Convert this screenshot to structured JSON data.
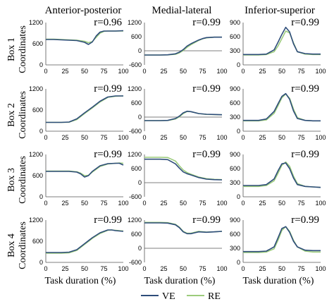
{
  "figure": {
    "columns": [
      "Anterior-posterior",
      "Medial-lateral",
      "Inferior-superior"
    ],
    "rows": [
      {
        "box": "Box 1",
        "coord": "Coordinates"
      },
      {
        "box": "Box 2",
        "coord": "Coordinates"
      },
      {
        "box": "Box 3",
        "coord": "Coordinates"
      },
      {
        "box": "Box 4",
        "coord": "Coordinates"
      }
    ],
    "xlabel": "Task duration (%)",
    "legend": [
      {
        "name": "VE",
        "color": "#2e4d7a"
      },
      {
        "name": "RE",
        "color": "#9ccb7c"
      }
    ]
  },
  "chart_data": [
    {
      "type": "line",
      "row": 0,
      "col": 0,
      "r_label": "r=0.96",
      "x_ticks": [
        0,
        25,
        50,
        75,
        100
      ],
      "y_ticks": [
        0,
        600,
        1200
      ],
      "ylim": [
        0,
        1200
      ],
      "xlim": [
        0,
        100
      ],
      "x": [
        0,
        10,
        20,
        30,
        40,
        50,
        55,
        60,
        65,
        70,
        75,
        80,
        90,
        100
      ],
      "series": [
        {
          "name": "VE",
          "values": [
            720,
            720,
            710,
            700,
            690,
            640,
            580,
            650,
            820,
            930,
            960,
            960,
            960,
            970
          ]
        },
        {
          "name": "RE",
          "values": [
            730,
            730,
            720,
            710,
            700,
            670,
            630,
            660,
            780,
            900,
            950,
            960,
            960,
            960
          ]
        }
      ]
    },
    {
      "type": "line",
      "row": 0,
      "col": 1,
      "r_label": "r=0.99",
      "x_ticks": [
        0,
        25,
        50,
        75,
        100
      ],
      "y_ticks": [
        -600,
        0,
        600,
        1200
      ],
      "ylim": [
        -600,
        1200
      ],
      "xlim": [
        0,
        100
      ],
      "x": [
        0,
        10,
        20,
        30,
        40,
        45,
        50,
        55,
        60,
        65,
        70,
        75,
        80,
        90,
        100
      ],
      "series": [
        {
          "name": "VE",
          "values": [
            -180,
            -180,
            -180,
            -170,
            -130,
            -60,
            50,
            200,
            300,
            380,
            460,
            520,
            560,
            580,
            580
          ]
        },
        {
          "name": "RE",
          "values": [
            -180,
            -180,
            -180,
            -175,
            -150,
            -90,
            10,
            150,
            260,
            350,
            440,
            510,
            550,
            580,
            580
          ]
        }
      ]
    },
    {
      "type": "line",
      "row": 0,
      "col": 2,
      "r_label": "r=0.99",
      "x_ticks": [
        0,
        25,
        50,
        75,
        100
      ],
      "y_ticks": [
        0,
        300,
        600,
        900
      ],
      "ylim": [
        0,
        900
      ],
      "xlim": [
        0,
        100
      ],
      "x": [
        0,
        10,
        20,
        30,
        40,
        45,
        50,
        55,
        60,
        65,
        70,
        80,
        90,
        100
      ],
      "series": [
        {
          "name": "VE",
          "values": [
            220,
            220,
            220,
            230,
            320,
            480,
            650,
            800,
            700,
            450,
            280,
            240,
            230,
            230
          ]
        },
        {
          "name": "RE",
          "values": [
            210,
            210,
            210,
            220,
            280,
            400,
            560,
            720,
            680,
            470,
            280,
            230,
            220,
            220
          ]
        }
      ]
    },
    {
      "type": "line",
      "row": 1,
      "col": 0,
      "r_label": "r=0.99",
      "x_ticks": [
        0,
        25,
        50,
        75,
        100
      ],
      "y_ticks": [
        0,
        600,
        1200
      ],
      "ylim": [
        0,
        1200
      ],
      "xlim": [
        0,
        100
      ],
      "x": [
        0,
        10,
        20,
        30,
        40,
        50,
        60,
        70,
        80,
        90,
        100
      ],
      "series": [
        {
          "name": "VE",
          "values": [
            250,
            250,
            250,
            260,
            350,
            520,
            680,
            850,
            970,
            1000,
            1000
          ]
        },
        {
          "name": "RE",
          "values": [
            250,
            250,
            250,
            255,
            330,
            500,
            660,
            830,
            960,
            990,
            1000
          ]
        }
      ]
    },
    {
      "type": "line",
      "row": 1,
      "col": 1,
      "r_label": "r=0.99",
      "x_ticks": [
        0,
        25,
        50,
        75,
        100
      ],
      "y_ticks": [
        -600,
        0,
        600,
        1200
      ],
      "ylim": [
        -600,
        1200
      ],
      "xlim": [
        0,
        100
      ],
      "x": [
        0,
        10,
        20,
        30,
        40,
        45,
        50,
        55,
        60,
        70,
        80,
        90,
        100
      ],
      "series": [
        {
          "name": "VE",
          "values": [
            -150,
            -150,
            -150,
            -140,
            -60,
            40,
            180,
            250,
            230,
            150,
            120,
            110,
            100
          ]
        },
        {
          "name": "RE",
          "values": [
            -150,
            -150,
            -150,
            -145,
            -80,
            10,
            150,
            240,
            230,
            150,
            115,
            105,
            100
          ]
        }
      ]
    },
    {
      "type": "line",
      "row": 1,
      "col": 2,
      "r_label": "r=0.99",
      "x_ticks": [
        0,
        25,
        50,
        75,
        100
      ],
      "y_ticks": [
        0,
        300,
        600,
        900
      ],
      "ylim": [
        0,
        900
      ],
      "xlim": [
        0,
        100
      ],
      "x": [
        0,
        10,
        20,
        30,
        40,
        45,
        50,
        55,
        60,
        65,
        70,
        80,
        90,
        100
      ],
      "series": [
        {
          "name": "VE",
          "values": [
            230,
            230,
            230,
            260,
            420,
            580,
            740,
            800,
            680,
            430,
            270,
            230,
            220,
            220
          ]
        },
        {
          "name": "RE",
          "values": [
            220,
            220,
            220,
            240,
            380,
            540,
            710,
            790,
            700,
            470,
            290,
            230,
            220,
            220
          ]
        }
      ]
    },
    {
      "type": "line",
      "row": 2,
      "col": 0,
      "r_label": "r=0.99",
      "x_ticks": [
        0,
        25,
        50,
        75,
        100
      ],
      "y_ticks": [
        0,
        600,
        1200
      ],
      "ylim": [
        0,
        1200
      ],
      "xlim": [
        0,
        100
      ],
      "x": [
        0,
        10,
        20,
        30,
        40,
        45,
        50,
        55,
        60,
        70,
        80,
        90,
        95,
        100
      ],
      "series": [
        {
          "name": "VE",
          "values": [
            720,
            720,
            720,
            720,
            700,
            650,
            560,
            600,
            720,
            880,
            940,
            950,
            950,
            900
          ]
        },
        {
          "name": "RE",
          "values": [
            730,
            730,
            730,
            730,
            710,
            670,
            600,
            610,
            700,
            860,
            930,
            950,
            960,
            950
          ]
        }
      ]
    },
    {
      "type": "line",
      "row": 2,
      "col": 1,
      "r_label": "r=0.99",
      "x_ticks": [
        0,
        25,
        50,
        75,
        100
      ],
      "y_ticks": [
        -600,
        0,
        600,
        1200
      ],
      "ylim": [
        -600,
        1200
      ],
      "xlim": [
        0,
        100
      ],
      "x": [
        0,
        10,
        20,
        30,
        40,
        45,
        50,
        55,
        60,
        70,
        80,
        90,
        100
      ],
      "series": [
        {
          "name": "VE",
          "values": [
            1000,
            1000,
            1000,
            980,
            800,
            620,
            460,
            380,
            330,
            220,
            150,
            130,
            120
          ]
        },
        {
          "name": "RE",
          "values": [
            1080,
            1080,
            1080,
            1070,
            920,
            720,
            540,
            430,
            360,
            240,
            170,
            140,
            130
          ]
        }
      ]
    },
    {
      "type": "line",
      "row": 2,
      "col": 2,
      "r_label": "r=0.99",
      "x_ticks": [
        0,
        25,
        50,
        75,
        100
      ],
      "y_ticks": [
        0,
        300,
        600,
        900
      ],
      "ylim": [
        0,
        900
      ],
      "xlim": [
        0,
        100
      ],
      "x": [
        0,
        10,
        20,
        30,
        40,
        45,
        50,
        55,
        60,
        65,
        70,
        80,
        90,
        100
      ],
      "series": [
        {
          "name": "VE",
          "values": [
            240,
            240,
            240,
            260,
            380,
            550,
            700,
            720,
            600,
            400,
            260,
            220,
            210,
            200
          ]
        },
        {
          "name": "RE",
          "values": [
            220,
            220,
            220,
            240,
            340,
            500,
            670,
            740,
            650,
            440,
            280,
            220,
            210,
            200
          ]
        }
      ]
    },
    {
      "type": "line",
      "row": 3,
      "col": 0,
      "r_label": "r=0.99",
      "x_ticks": [
        0,
        25,
        50,
        75,
        100
      ],
      "y_ticks": [
        0,
        600,
        1200
      ],
      "ylim": [
        0,
        1200
      ],
      "xlim": [
        0,
        100
      ],
      "x": [
        0,
        10,
        20,
        30,
        40,
        50,
        60,
        70,
        80,
        85,
        90,
        100
      ],
      "series": [
        {
          "name": "VE",
          "values": [
            280,
            280,
            280,
            290,
            360,
            530,
            700,
            840,
            920,
            920,
            900,
            880
          ]
        },
        {
          "name": "RE",
          "values": [
            260,
            260,
            260,
            270,
            340,
            510,
            680,
            820,
            910,
            920,
            910,
            890
          ]
        }
      ]
    },
    {
      "type": "line",
      "row": 3,
      "col": 1,
      "r_label": "r=0.99",
      "x_ticks": [
        0,
        25,
        50,
        75,
        100
      ],
      "y_ticks": [
        -600,
        0,
        600,
        1200
      ],
      "ylim": [
        -600,
        1200
      ],
      "xlim": [
        0,
        100
      ],
      "x": [
        0,
        10,
        20,
        30,
        40,
        45,
        50,
        55,
        60,
        65,
        70,
        80,
        90,
        100
      ],
      "series": [
        {
          "name": "VE",
          "values": [
            1080,
            1080,
            1080,
            1070,
            1000,
            880,
            700,
            620,
            620,
            660,
            700,
            680,
            700,
            720
          ]
        },
        {
          "name": "RE",
          "values": [
            1100,
            1100,
            1100,
            1090,
            1020,
            900,
            720,
            640,
            640,
            680,
            720,
            690,
            700,
            720
          ]
        }
      ]
    },
    {
      "type": "line",
      "row": 3,
      "col": 2,
      "r_label": "r=0.99",
      "x_ticks": [
        0,
        25,
        50,
        75,
        100
      ],
      "y_ticks": [
        0,
        300,
        600,
        900
      ],
      "ylim": [
        0,
        900
      ],
      "xlim": [
        0,
        100
      ],
      "x": [
        0,
        10,
        20,
        30,
        40,
        45,
        50,
        55,
        60,
        65,
        70,
        80,
        90,
        100
      ],
      "series": [
        {
          "name": "VE",
          "values": [
            230,
            230,
            230,
            240,
            330,
            520,
            720,
            760,
            640,
            450,
            330,
            260,
            250,
            250
          ]
        },
        {
          "name": "RE",
          "values": [
            210,
            210,
            210,
            220,
            290,
            470,
            680,
            760,
            660,
            470,
            330,
            240,
            220,
            220
          ]
        }
      ]
    }
  ]
}
